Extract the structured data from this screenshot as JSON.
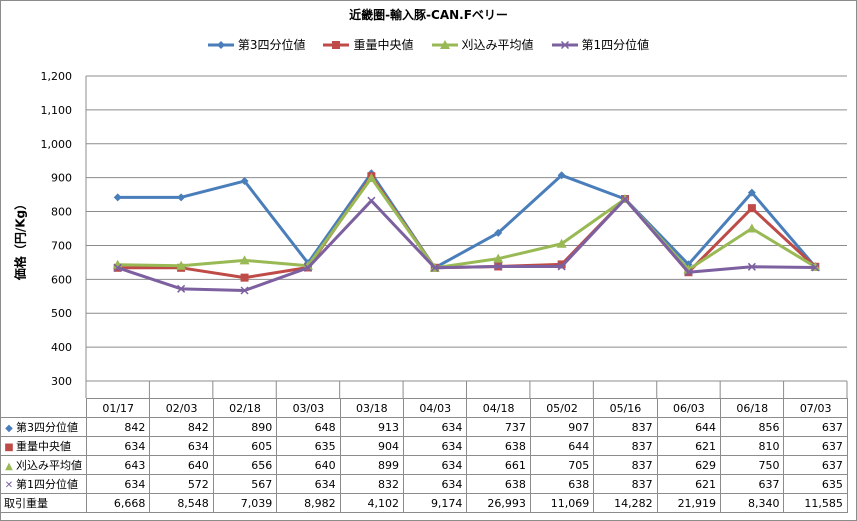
{
  "chart_data": {
    "type": "line",
    "title": "近畿圏-輸入豚-CAN.Fベリー",
    "ylabel": "価格（円/Kg）",
    "categories": [
      "01/17",
      "02/03",
      "02/18",
      "03/03",
      "03/18",
      "04/03",
      "04/18",
      "05/02",
      "05/16",
      "06/03",
      "06/18",
      "07/03"
    ],
    "y_ticks": [
      "300",
      "400",
      "500",
      "600",
      "700",
      "800",
      "900",
      "1,000",
      "1,100",
      "1,200"
    ],
    "ylim": [
      300,
      1200
    ],
    "grid": true,
    "legend_position": "top",
    "series": [
      {
        "name": "第3四分位値",
        "color": "#4a7ebb",
        "marker": "diamond",
        "marker_glyph": "◆",
        "values": [
          842,
          842,
          890,
          648,
          913,
          634,
          737,
          907,
          837,
          644,
          856,
          637
        ]
      },
      {
        "name": "重量中央値",
        "color": "#be4b48",
        "marker": "square",
        "marker_glyph": "■",
        "values": [
          634,
          634,
          605,
          635,
          904,
          634,
          638,
          644,
          837,
          621,
          810,
          637
        ]
      },
      {
        "name": "刈込み平均値",
        "color": "#98b954",
        "marker": "triangle",
        "marker_glyph": "▲",
        "values": [
          643,
          640,
          656,
          640,
          899,
          634,
          661,
          705,
          837,
          629,
          750,
          637
        ]
      },
      {
        "name": "第1四分位値",
        "color": "#7d60a0",
        "marker": "x",
        "marker_glyph": "✕",
        "values": [
          634,
          572,
          567,
          634,
          832,
          634,
          638,
          638,
          837,
          621,
          637,
          635
        ]
      }
    ],
    "table": {
      "row_labels": [
        "第3四分位値",
        "重量中央値",
        "刈込み平均値",
        "第1四分位値",
        "取引重量"
      ],
      "rows": [
        [
          "842",
          "842",
          "890",
          "648",
          "913",
          "634",
          "737",
          "907",
          "837",
          "644",
          "856",
          "637"
        ],
        [
          "634",
          "634",
          "605",
          "635",
          "904",
          "634",
          "638",
          "644",
          "837",
          "621",
          "810",
          "637"
        ],
        [
          "643",
          "640",
          "656",
          "640",
          "899",
          "634",
          "661",
          "705",
          "837",
          "629",
          "750",
          "637"
        ],
        [
          "634",
          "572",
          "567",
          "634",
          "832",
          "634",
          "638",
          "638",
          "837",
          "621",
          "637",
          "635"
        ],
        [
          "6,668",
          "8,548",
          "7,039",
          "8,982",
          "4,102",
          "9,174",
          "26,993",
          "11,069",
          "14,282",
          "21,919",
          "8,340",
          "11,585"
        ]
      ]
    }
  }
}
